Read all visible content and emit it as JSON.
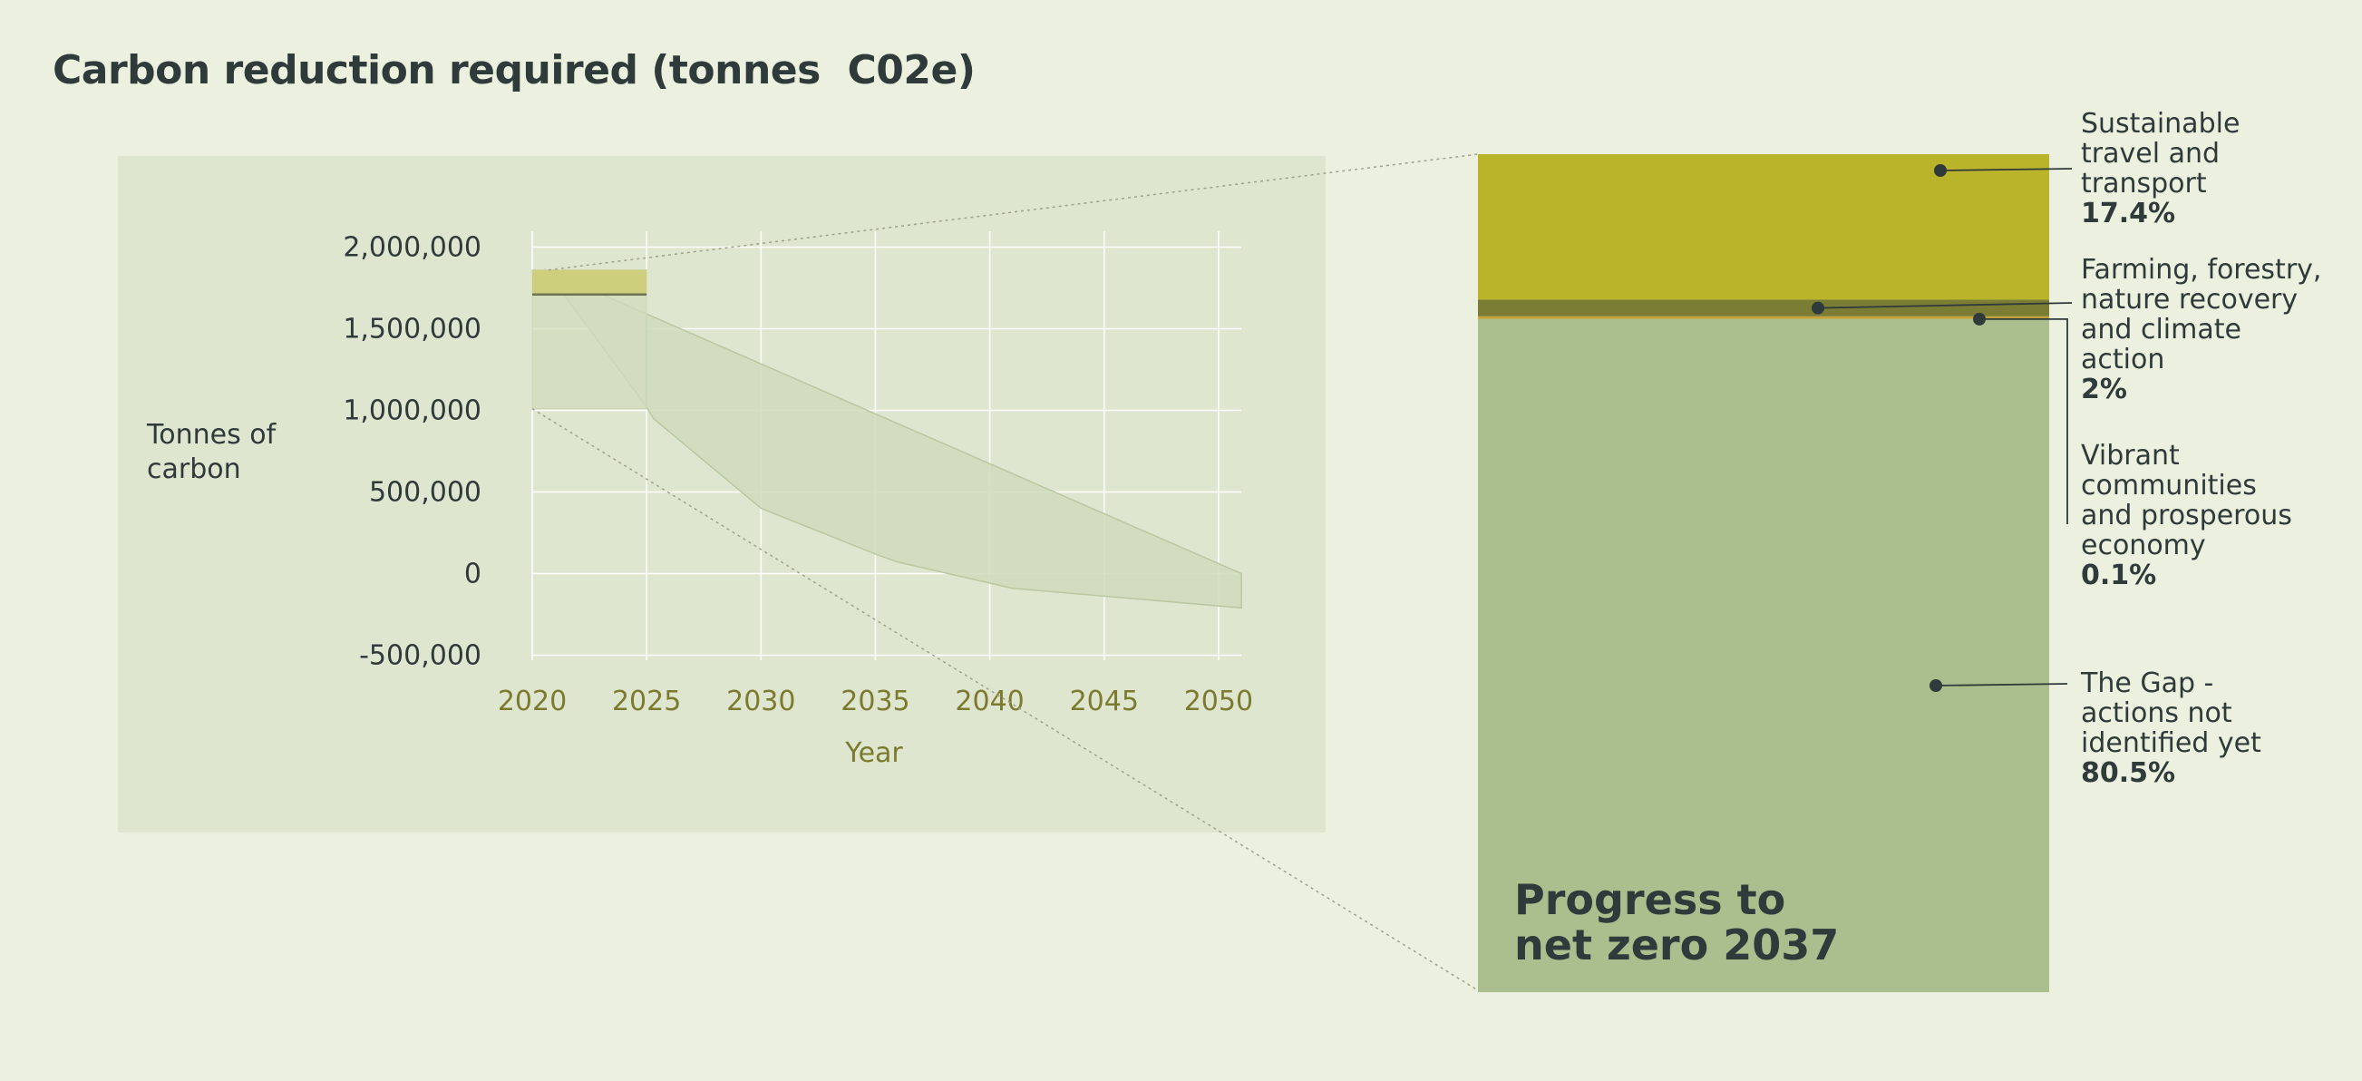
{
  "title": "Carbon reduction required (tonnes  C02e)",
  "colors": {
    "background": "#ECF0DF",
    "panel": "#DFE6D0",
    "gridline": "#FFFFFF",
    "trajectory_fill": "#CFDABB",
    "trajectory_stroke": "#B9C8A1",
    "zoom_box": "#D3DBBE",
    "zoom_box_top": "#CDCF7C",
    "transport": "#B9B42A",
    "farming": "#7C7D35",
    "communities": "#C2A23A",
    "gap": "#ABBF8E",
    "text": "#2F3A3A",
    "xaxis_text": "#7B7A2E"
  },
  "chart_data": [
    {
      "type": "area",
      "ylabel": "Tonnes of carbon",
      "xlabel": "Year",
      "xlim": [
        2020,
        2051
      ],
      "ylim": [
        -500000,
        2000000
      ],
      "x_ticks": [
        "2020",
        "2025",
        "2030",
        "2035",
        "2040",
        "2045",
        "2050"
      ],
      "y_ticks": [
        "2,000,000",
        "1,500,000",
        "1,000,000",
        "500,000",
        "0",
        "-500,000"
      ],
      "grid": true,
      "upper_boundary": {
        "x": [
          2020.6,
          2051
        ],
        "y": [
          1860000,
          0
        ]
      },
      "lower_boundary": {
        "x": [
          2020.6,
          2025,
          2025.3,
          2030,
          2035,
          2036,
          2041,
          2051
        ],
        "y": [
          1860000,
          1020000,
          950000,
          400000,
          120000,
          70000,
          -90000,
          -210000
        ]
      },
      "highlight_box": {
        "x_range": [
          2020,
          2025
        ],
        "y_range": [
          1010000,
          1860000
        ],
        "top_band": [
          1710000,
          1860000
        ],
        "divider_y": 1710000
      }
    },
    {
      "type": "bar",
      "title": "Progress to net zero 2037",
      "stacked": true,
      "segments": [
        {
          "label": "Sustainable travel and transport",
          "value": 17.4,
          "display": "17.4%"
        },
        {
          "label": "Farming, forestry, nature recovery and climate action",
          "value": 2,
          "display": "2%"
        },
        {
          "label": "Vibrant communities and prosperous economy",
          "value": 0.1,
          "display": "0.1%"
        },
        {
          "label": "The Gap - actions not identified yet",
          "value": 80.5,
          "display": "80.5%"
        }
      ]
    }
  ],
  "bar_title_lines": [
    "Progress to",
    "net zero 2037"
  ],
  "ylabel_lines": [
    "Tonnes of",
    "carbon"
  ],
  "segment_label_lines": [
    [
      "Sustainable",
      "travel and",
      "transport"
    ],
    [
      "Farming, forestry,",
      "nature recovery",
      "and climate",
      "action"
    ],
    [
      "Vibrant",
      "communities",
      "and prosperous",
      "economy"
    ],
    [
      "The Gap -",
      "actions not",
      "identified yet"
    ]
  ]
}
